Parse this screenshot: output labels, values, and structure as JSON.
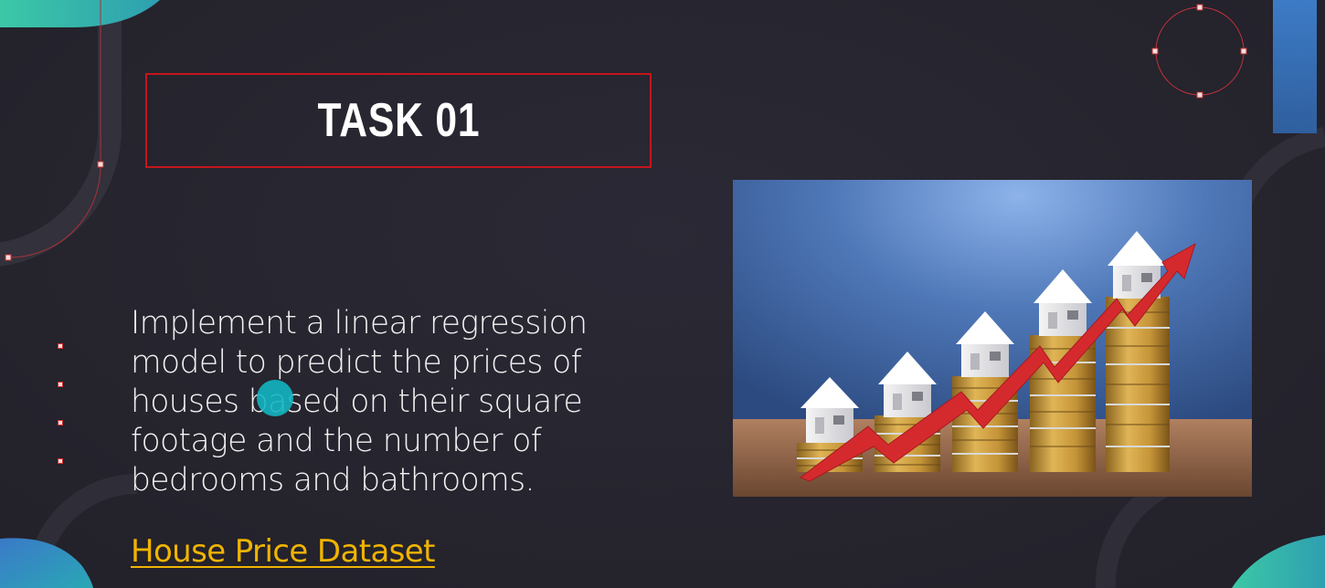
{
  "slide": {
    "title": "TASK 01",
    "body_lines": [
      "Implement a linear regression",
      "model to predict the prices of",
      "houses based on their square",
      "footage and the number of",
      "bedrooms and bathrooms."
    ],
    "link_text": "House Price Dataset"
  },
  "image": {
    "subject": "houses-on-coin-stacks-with-rising-arrow"
  },
  "colors": {
    "background": "#27252f",
    "accent_red": "#c4161c",
    "link_yellow": "#f0b400",
    "teal": "#3fc3a8",
    "blue": "#3a6fb8",
    "cursor_cyan": "#14b5c2"
  }
}
